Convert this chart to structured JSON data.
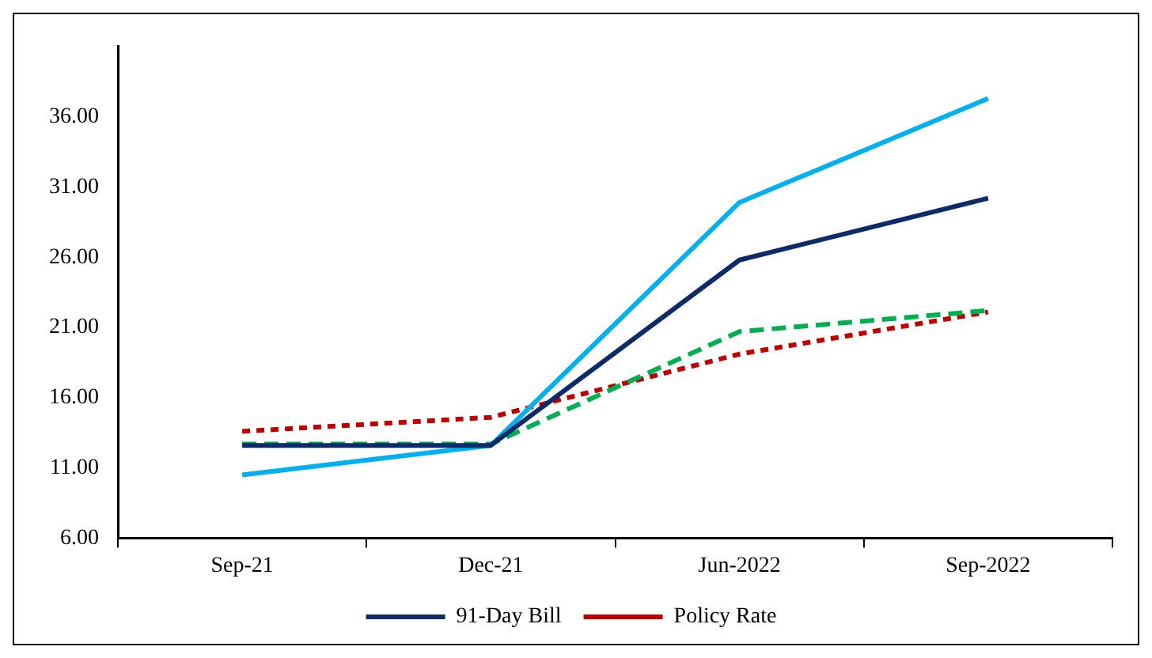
{
  "chart_data": {
    "type": "line",
    "categories": [
      "Sep-21",
      "Dec-21",
      "Jun-2022",
      "Sep-2022"
    ],
    "series": [
      {
        "name": "91-Day Bill",
        "color": "#0d2a6b",
        "values": [
          12.6,
          12.6,
          25.8,
          30.2
        ],
        "line_style": "solid"
      },
      {
        "color": "#00b0f0",
        "values": [
          10.5,
          12.6,
          29.9,
          37.3
        ],
        "line_style": "solid"
      },
      {
        "color": "#00b050",
        "values": [
          12.7,
          12.7,
          20.7,
          22.2
        ],
        "line_style": "dashed"
      },
      {
        "name": "Policy Rate",
        "color": "#c00000",
        "values": [
          13.6,
          14.6,
          19.1,
          22.1
        ],
        "line_style": "dotted"
      }
    ],
    "ylim": [
      6,
      41
    ],
    "yticks": [
      {
        "value": 6,
        "label": "6.00"
      },
      {
        "value": 11,
        "label": "11.00"
      },
      {
        "value": 16,
        "label": "16.00"
      },
      {
        "value": 21,
        "label": "21.00"
      },
      {
        "value": 26,
        "label": "26.00"
      },
      {
        "value": 31,
        "label": "31.00"
      },
      {
        "value": 36,
        "label": "36.00"
      }
    ],
    "grid": false,
    "legend": "bottom",
    "marker": "none"
  }
}
